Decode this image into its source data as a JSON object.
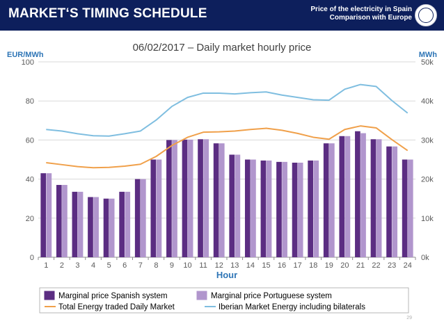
{
  "header": {
    "title": "MARKET‘S TIMING SCHEDULE",
    "subtitle_line1": "Price of the electricity in Spain",
    "subtitle_line2": "Comparison with Europe"
  },
  "slide_number": "29",
  "colors": {
    "header_bg": "#0d1f5c",
    "bar_spain": "#5b2d82",
    "bar_portugal": "#b196cd",
    "line_total": "#f0a04a",
    "line_iberian": "#7fbee0",
    "axis_label": "#2e75b6"
  },
  "chart_data": {
    "type": "bar",
    "title": "06/02/2017 – Daily market hourly price",
    "xlabel": "Hour",
    "ylabel_left": "EUR/MWh",
    "ylabel_right": "MWh",
    "ylim_left": [
      0,
      100
    ],
    "ylim_right": [
      0,
      50000
    ],
    "yticks_left": [
      "0",
      "20",
      "40",
      "60",
      "80",
      "100"
    ],
    "yticks_right": [
      "0k",
      "10k",
      "20k",
      "30k",
      "40k",
      "50k"
    ],
    "grid": true,
    "legend_position": "bottom",
    "categories": [
      "1",
      "2",
      "3",
      "4",
      "5",
      "6",
      "7",
      "8",
      "9",
      "10",
      "11",
      "12",
      "13",
      "14",
      "15",
      "16",
      "17",
      "18",
      "19",
      "20",
      "21",
      "22",
      "23",
      "24"
    ],
    "series": [
      {
        "name": "Marginal price Spanish system",
        "kind": "bar",
        "axis": "left",
        "color_key": "bar_spain",
        "values": [
          43,
          37,
          33.5,
          30.8,
          30,
          33.5,
          40,
          50,
          60,
          60.2,
          60.4,
          58.3,
          52.5,
          50,
          49.5,
          48.8,
          48.4,
          49.5,
          58.3,
          62,
          64.5,
          60.4,
          56.7,
          50
        ]
      },
      {
        "name": "Marginal price Portuguese system",
        "kind": "bar",
        "axis": "left",
        "color_key": "bar_portugal",
        "values": [
          43,
          37,
          33.5,
          30.8,
          30,
          33.5,
          40,
          50,
          60,
          60.2,
          60.4,
          58.3,
          52.5,
          50,
          49.5,
          48.8,
          48.4,
          49.5,
          58.3,
          62,
          63.5,
          60.4,
          56.7,
          50
        ]
      },
      {
        "name": "Total Energy traded Daily Market",
        "kind": "line",
        "axis": "right",
        "color_key": "line_total",
        "values": [
          24200,
          23700,
          23200,
          22900,
          23000,
          23300,
          23800,
          25800,
          28600,
          30700,
          32000,
          32100,
          32300,
          32700,
          33000,
          32500,
          31700,
          30700,
          30200,
          32700,
          33600,
          33100,
          30100,
          27300
        ]
      },
      {
        "name": "Iberian Market Energy including bilaterals",
        "kind": "line",
        "axis": "right",
        "color_key": "line_iberian",
        "values": [
          32700,
          32300,
          31600,
          31100,
          31000,
          31600,
          32300,
          35100,
          38600,
          40900,
          42000,
          42000,
          41800,
          42100,
          42300,
          41500,
          40900,
          40300,
          40200,
          43000,
          44200,
          43700,
          40100,
          36900
        ]
      }
    ]
  }
}
